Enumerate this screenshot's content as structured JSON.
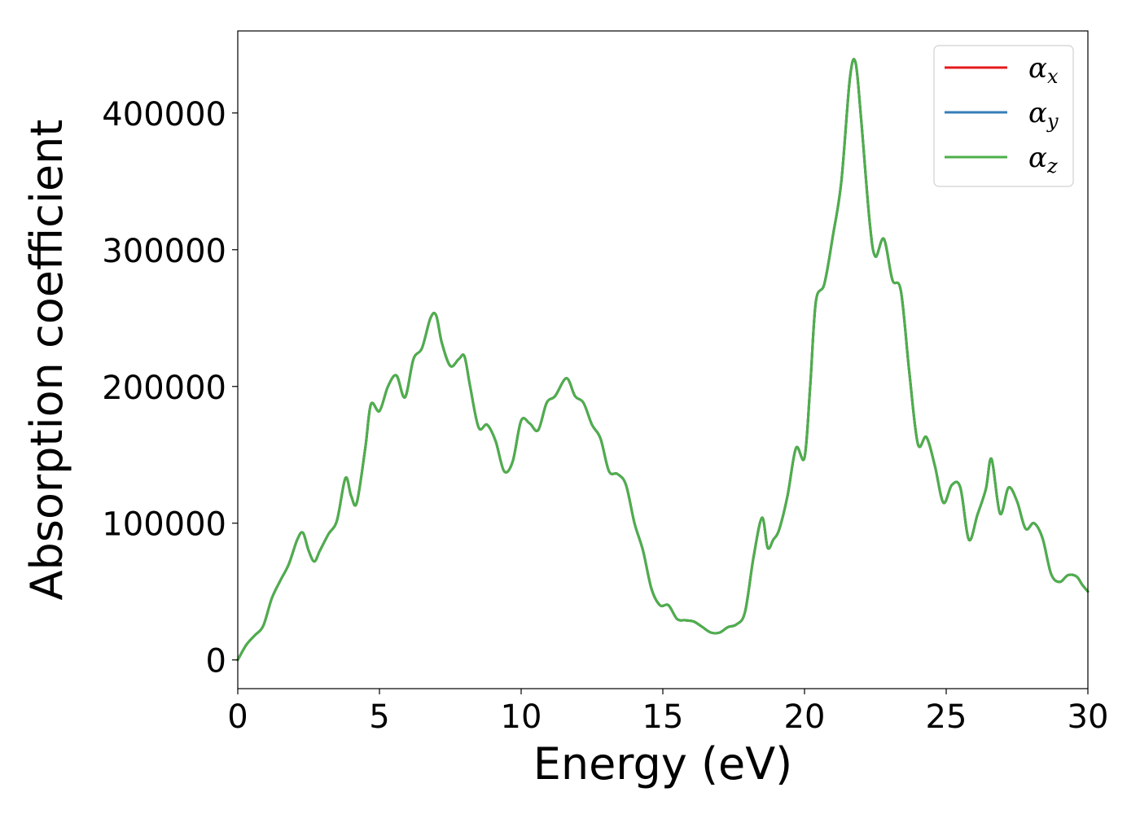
{
  "chart_data": {
    "type": "line",
    "xlabel": "Energy (eV)",
    "ylabel": "Absorption coefficient",
    "xlim": [
      0,
      30
    ],
    "ylim": [
      -21000,
      460000
    ],
    "xticks": [
      0,
      5,
      10,
      15,
      20,
      25,
      30
    ],
    "yticks": [
      0,
      100000,
      200000,
      300000,
      400000
    ],
    "grid": false,
    "legend_position": "top-right",
    "series": [
      {
        "name": "α",
        "subscript": "x",
        "color": "#e41a1c"
      },
      {
        "name": "α",
        "subscript": "y",
        "color": "#377eb8"
      },
      {
        "name": "α",
        "subscript": "z",
        "color": "#4daf4a"
      }
    ],
    "x": [
      0,
      0.3,
      0.6,
      0.9,
      1.2,
      1.5,
      1.8,
      2.1,
      2.3,
      2.5,
      2.7,
      2.9,
      3.2,
      3.5,
      3.8,
      4.0,
      4.2,
      4.5,
      4.7,
      5.0,
      5.3,
      5.6,
      5.9,
      6.2,
      6.5,
      6.8,
      7.0,
      7.2,
      7.5,
      7.8,
      8.0,
      8.2,
      8.5,
      8.8,
      9.1,
      9.4,
      9.7,
      10.0,
      10.3,
      10.6,
      10.9,
      11.2,
      11.6,
      11.9,
      12.2,
      12.5,
      12.8,
      13.1,
      13.4,
      13.7,
      14.0,
      14.3,
      14.6,
      14.9,
      15.2,
      15.5,
      15.8,
      16.1,
      16.4,
      16.7,
      17.0,
      17.3,
      17.6,
      17.9,
      18.2,
      18.5,
      18.7,
      18.9,
      19.1,
      19.4,
      19.7,
      20.0,
      20.2,
      20.4,
      20.7,
      21.0,
      21.3,
      21.6,
      21.8,
      22.0,
      22.3,
      22.5,
      22.8,
      23.1,
      23.4,
      23.7,
      24.0,
      24.3,
      24.6,
      24.9,
      25.2,
      25.5,
      25.8,
      26.1,
      26.4,
      26.6,
      26.9,
      27.2,
      27.5,
      27.8,
      28.1,
      28.4,
      28.7,
      29.0,
      29.3,
      29.6,
      29.8,
      30.0
    ],
    "y": [
      0,
      11000,
      18000,
      25000,
      45000,
      58000,
      70000,
      88000,
      93000,
      80000,
      72000,
      80000,
      92000,
      102000,
      133000,
      120000,
      115000,
      155000,
      187000,
      182000,
      200000,
      208000,
      192000,
      220000,
      228000,
      250000,
      252000,
      232000,
      215000,
      220000,
      222000,
      200000,
      170000,
      172000,
      160000,
      138000,
      145000,
      175000,
      173000,
      168000,
      188000,
      193000,
      206000,
      193000,
      188000,
      172000,
      162000,
      138000,
      136000,
      128000,
      100000,
      80000,
      52000,
      40000,
      40000,
      30000,
      29000,
      28000,
      24000,
      20000,
      20000,
      24000,
      26000,
      35000,
      75000,
      104000,
      82000,
      88000,
      95000,
      120000,
      155000,
      148000,
      200000,
      262000,
      275000,
      310000,
      350000,
      425000,
      437000,
      395000,
      320000,
      295000,
      308000,
      278000,
      270000,
      210000,
      158000,
      163000,
      142000,
      115000,
      128000,
      126000,
      88000,
      106000,
      125000,
      147000,
      107000,
      126000,
      116000,
      96000,
      100000,
      89000,
      63000,
      57000,
      62000,
      61000,
      55000,
      50000
    ]
  }
}
